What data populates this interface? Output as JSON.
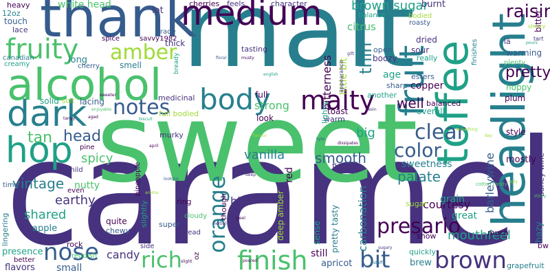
{
  "words": [
    {
      "text": "caramel",
      "color": "#46327e"
    },
    {
      "text": "sweet",
      "color": "#4ac16d"
    },
    {
      "text": "malt",
      "color": "#277f8e"
    },
    {
      "text": "thank",
      "color": "#365c8d"
    },
    {
      "text": "medium",
      "color": "#440154"
    },
    {
      "text": "alcohol",
      "color": "#4ac16d"
    },
    {
      "text": "toffee",
      "color": "#1fa187"
    },
    {
      "text": "headlight",
      "color": "#277f8e"
    },
    {
      "text": "fruit",
      "color": "#277f8e"
    },
    {
      "text": "fruity",
      "color": "#4ac16d"
    },
    {
      "text": "hop",
      "color": "#1fa187"
    },
    {
      "text": "dark",
      "color": "#277f8e"
    },
    {
      "text": "body",
      "color": "#277f8e"
    },
    {
      "text": "malty",
      "color": "#440154"
    },
    {
      "text": "amber",
      "color": "#a0da39"
    },
    {
      "text": "notes",
      "color": "#365c8d"
    },
    {
      "text": "finish",
      "color": "#4ac16d"
    },
    {
      "text": "rich",
      "color": "#4ac16d"
    },
    {
      "text": "nose",
      "color": "#365c8d"
    },
    {
      "text": "brown",
      "color": "#46327e"
    },
    {
      "text": "bit",
      "color": "#365c8d"
    },
    {
      "text": "orange",
      "color": "#277f8e"
    },
    {
      "text": "presario",
      "color": "#440154"
    },
    {
      "text": "color",
      "color": "#365c8d"
    },
    {
      "text": "clear",
      "color": "#365c8d"
    },
    {
      "text": "raisin",
      "color": "#440154"
    },
    {
      "text": "brown sugar",
      "color": "#1fa187"
    },
    {
      "text": "pretty",
      "color": "#440154"
    },
    {
      "text": "thin",
      "color": "#277f8e"
    },
    {
      "text": "bitterness",
      "color": "#440154"
    },
    {
      "text": "head",
      "color": "#365c8d"
    },
    {
      "text": "tan",
      "color": "#4ac16d"
    },
    {
      "text": "strong",
      "color": "#4ac16d"
    },
    {
      "text": "smooth",
      "color": "#365c8d"
    },
    {
      "text": "well",
      "color": "#440154"
    },
    {
      "text": "vintage",
      "color": "#277f8e"
    },
    {
      "text": "spicy",
      "color": "#4ac16d"
    },
    {
      "text": "earthy",
      "color": "#46327e"
    },
    {
      "text": "shared",
      "color": "#1fa187"
    },
    {
      "text": "palate",
      "color": "#277f8e"
    },
    {
      "text": "barleywine",
      "color": "#365c8d"
    },
    {
      "text": "carbonation",
      "color": "#277f8e"
    },
    {
      "text": "courtesy",
      "color": "#440154"
    },
    {
      "text": "vanilla",
      "color": "#277f8e"
    },
    {
      "text": "big",
      "color": "#1fa187"
    },
    {
      "text": "candy",
      "color": "#46327e"
    },
    {
      "text": "mouthfeel",
      "color": "#1fa187"
    },
    {
      "text": "sweetness",
      "color": "#277f8e"
    },
    {
      "text": "little bit",
      "color": "#a0da39"
    },
    {
      "text": "white head",
      "color": "#4ac16d"
    },
    {
      "text": "copper",
      "color": "#440154"
    },
    {
      "text": "citrus",
      "color": "#4ac16d"
    },
    {
      "text": "hint",
      "color": "#46327e"
    },
    {
      "text": "great",
      "color": "#1fa187"
    },
    {
      "text": "grain",
      "color": "#1fa187"
    },
    {
      "text": "deep amber",
      "color": "#a0da39"
    },
    {
      "text": "pretty tasty",
      "color": "#277f8e"
    },
    {
      "text": "bitter",
      "color": "#440154"
    },
    {
      "text": "warming",
      "color": "#365c8d"
    },
    {
      "text": "style",
      "color": "#440154"
    },
    {
      "text": "hoppy",
      "color": "#4ac16d"
    },
    {
      "text": "mostly",
      "color": "#440154"
    },
    {
      "text": "hazy",
      "color": "#277f8e"
    },
    {
      "text": "barley wine",
      "color": "#46327e"
    },
    {
      "text": "grapefruit",
      "color": "#277f8e"
    },
    {
      "text": "brew",
      "color": "#277f8e"
    },
    {
      "text": "apricot",
      "color": "#365c8d"
    },
    {
      "text": "still",
      "color": "#440154"
    },
    {
      "text": "small",
      "color": "#365c8d"
    },
    {
      "text": "flavors",
      "color": "#46327e"
    },
    {
      "text": "presence",
      "color": "#1fa187"
    },
    {
      "text": "lingering",
      "color": "#277f8e"
    },
    {
      "text": "apple",
      "color": "#277f8e"
    },
    {
      "text": "nutty",
      "color": "#4ac16d"
    },
    {
      "text": "quite",
      "color": "#440154"
    },
    {
      "text": "full bodied",
      "color": "#a0da39"
    },
    {
      "text": "medicinal",
      "color": "#46327e"
    },
    {
      "text": "look",
      "color": "#440154"
    },
    {
      "text": "full",
      "color": "#440154"
    },
    {
      "text": "toast",
      "color": "#440154"
    },
    {
      "text": "warm",
      "color": "#46327e"
    },
    {
      "text": "overall",
      "color": "#1fa187"
    },
    {
      "text": "balanced",
      "color": "#440154"
    },
    {
      "text": "age",
      "color": "#1fa187"
    },
    {
      "text": "lightly",
      "color": "#1fa187"
    },
    {
      "text": "another",
      "color": "#1fa187"
    },
    {
      "text": "sharp",
      "color": "#365c8d"
    },
    {
      "text": "esters",
      "color": "#365c8d"
    },
    {
      "text": "plum",
      "color": "#440154"
    },
    {
      "text": "plenty",
      "color": "#4ac16d"
    },
    {
      "text": "sour",
      "color": "#46327e"
    },
    {
      "text": "dried",
      "color": "#46327e"
    },
    {
      "text": "boozy",
      "color": "#46327e"
    },
    {
      "text": "really",
      "color": "#1fa187"
    },
    {
      "text": "open",
      "color": "#365c8d"
    },
    {
      "text": "balance",
      "color": "#1fa187"
    },
    {
      "text": "burnt",
      "color": "#46327e"
    },
    {
      "text": "roasty",
      "color": "#365c8d"
    },
    {
      "text": "bodied",
      "color": "#a0da39"
    },
    {
      "text": "finishes",
      "color": "#277f8e"
    },
    {
      "text": "character",
      "color": "#46327e"
    },
    {
      "text": "feels",
      "color": "#46327e"
    },
    {
      "text": "cherries",
      "color": "#440154"
    },
    {
      "text": "lot",
      "color": "#46327e"
    },
    {
      "text": "thick",
      "color": "#46327e"
    },
    {
      "text": "smell",
      "color": "#277f8e"
    },
    {
      "text": "long",
      "color": "#277f8e"
    },
    {
      "text": "trade",
      "color": "#365c8d"
    },
    {
      "text": "savvy1982",
      "color": "#440154"
    },
    {
      "text": "spice",
      "color": "#440154"
    },
    {
      "text": "cherry",
      "color": "#365c8d"
    },
    {
      "text": "lacing",
      "color": "#365c8d"
    },
    {
      "text": "soft",
      "color": "#a0da39"
    },
    {
      "text": "solid",
      "color": "#1fa187"
    },
    {
      "text": "lace",
      "color": "#46327e"
    },
    {
      "text": "touch",
      "color": "#365c8d"
    },
    {
      "text": "heavy",
      "color": "#440154"
    },
    {
      "text": "12oz",
      "color": "#277f8e"
    },
    {
      "text": "canadian",
      "color": "#277f8e"
    },
    {
      "text": "creamy",
      "color": "#1fa187"
    },
    {
      "text": "tasting",
      "color": "#46327e"
    },
    {
      "text": "murky",
      "color": "#46327e"
    },
    {
      "text": "pine",
      "color": "#440154"
    },
    {
      "text": "pineapple",
      "color": "#440154"
    },
    {
      "text": "mild",
      "color": "#46327e"
    },
    {
      "text": "time",
      "color": "#365c8d"
    },
    {
      "text": "even",
      "color": "#440154"
    },
    {
      "text": "slightly",
      "color": "#1fa187"
    },
    {
      "text": "ring",
      "color": "#440154"
    },
    {
      "text": "super",
      "color": "#365c8d"
    },
    {
      "text": "cloudy",
      "color": "#4ac16d"
    },
    {
      "text": "bread",
      "color": "#46327e"
    },
    {
      "text": "chewy",
      "color": "#365c8d"
    },
    {
      "text": "side",
      "color": "#46327e"
    },
    {
      "text": "reddish",
      "color": "#4ac16d"
    },
    {
      "text": "rock",
      "color": "#440154"
    },
    {
      "text": "better",
      "color": "#440154"
    },
    {
      "text": "oz",
      "color": "#440154"
    },
    {
      "text": "though",
      "color": "#440154"
    },
    {
      "text": "red",
      "color": "#440154"
    },
    {
      "text": "sense",
      "color": "#1fa187"
    },
    {
      "text": "fig",
      "color": "#46327e"
    },
    {
      "text": "quickly",
      "color": "#1fa187"
    },
    {
      "text": "show",
      "color": "#440154"
    },
    {
      "text": "much",
      "color": "#440154"
    },
    {
      "text": "sugar",
      "color": "#a0da39"
    },
    {
      "text": "bw",
      "color": "#440154"
    },
    {
      "text": "iâ",
      "color": "#46327e"
    },
    {
      "text": "tart",
      "color": "#46327e"
    },
    {
      "text": "bready",
      "color": "#1fa187"
    },
    {
      "text": "floral",
      "color": "#365c8d"
    },
    {
      "text": "english",
      "color": "#1fa187"
    },
    {
      "text": "appearance",
      "color": "#46327e"
    },
    {
      "text": "cotton candy",
      "color": "#4ac16d"
    },
    {
      "text": "sherry",
      "color": "#a0da39"
    },
    {
      "text": "herbal",
      "color": "#46327e"
    },
    {
      "text": "peel",
      "color": "#440154"
    },
    {
      "text": "deep",
      "color": "#46327e"
    },
    {
      "text": "sugary",
      "color": "#46327e"
    },
    {
      "text": "kyle",
      "color": "#365c8d"
    },
    {
      "text": "flavour",
      "color": "#a0da39"
    },
    {
      "text": "tangy",
      "color": "#440154"
    },
    {
      "text": "sweeter",
      "color": "#440154"
    },
    {
      "text": "enjoyable",
      "color": "#4ac16d"
    },
    {
      "text": "biscuit",
      "color": "#1fa187"
    },
    {
      "text": "day",
      "color": "#a0da39"
    },
    {
      "text": "april",
      "color": "#440154"
    },
    {
      "text": "resin",
      "color": "#46327e"
    },
    {
      "text": "musty",
      "color": "#440154"
    },
    {
      "text": "pours",
      "color": "#1fa187"
    },
    {
      "text": "something",
      "color": "#a0da39"
    },
    {
      "text": "ugly",
      "color": "#a0da39"
    },
    {
      "text": "stuff",
      "color": "#277f8e"
    },
    {
      "text": "sticky",
      "color": "#4ac16d"
    },
    {
      "text": "slight",
      "color": "#440154"
    },
    {
      "text": "poured",
      "color": "#440154"
    },
    {
      "text": "gift",
      "color": "#46327e"
    },
    {
      "text": "aroma",
      "color": "#a0da39"
    },
    {
      "text": "aged",
      "color": "#440154"
    },
    {
      "text": "looking",
      "color": "#365c8d"
    },
    {
      "text": "dissipates",
      "color": "#440154"
    }
  ]
}
